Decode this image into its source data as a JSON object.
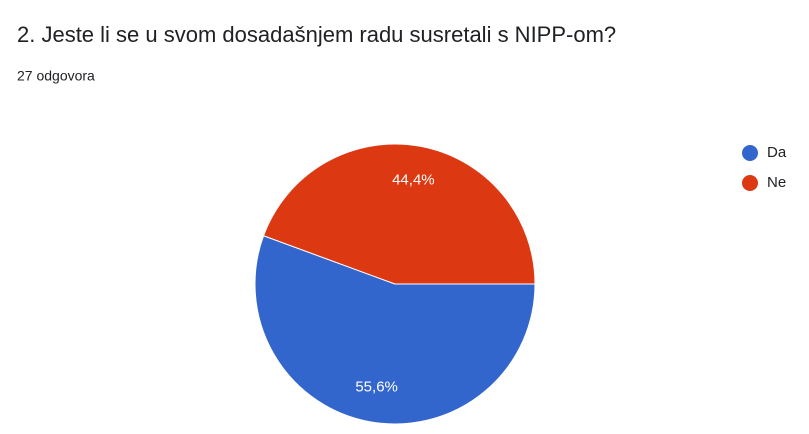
{
  "chart_data": {
    "type": "pie",
    "title": "2. Jeste li se u svom dosadašnjem radu susretali s NIPP-om?",
    "subtitle": "27 odgovora",
    "categories": [
      "Da",
      "Ne"
    ],
    "values": [
      55.6,
      44.4
    ],
    "value_labels": [
      "55,6%",
      "44,4%"
    ],
    "colors": [
      "#3366cc",
      "#dc3912"
    ],
    "legend": "right"
  }
}
